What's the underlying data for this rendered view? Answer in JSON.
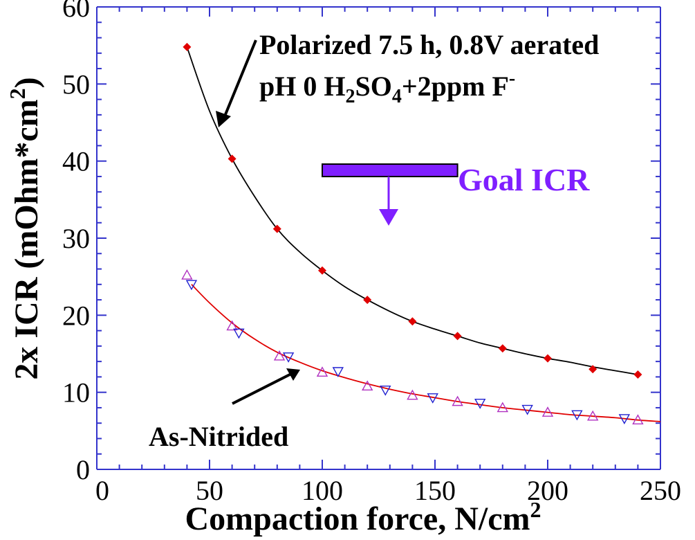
{
  "chart_data": {
    "type": "scatter",
    "xlabel": "Compaction force, N/cm",
    "xlabel_sup": "2",
    "ylabel": "2x ICR (mOhm*cm",
    "ylabel_sup": "2",
    "ylabel_end": ")",
    "xlim": [
      0,
      250
    ],
    "ylim": [
      0,
      60
    ],
    "xticks": [
      0,
      50,
      100,
      150,
      200,
      250
    ],
    "yticks": [
      0,
      10,
      20,
      30,
      40,
      50,
      60
    ],
    "grid": false,
    "colors": {
      "axis": "#3333cc",
      "polarized": "#e00000",
      "as_nitrided_up": "#b030c0",
      "as_nitrided_down": "#2020d0",
      "as_nitrided_fit": "#e00000",
      "goal": "#7f1fff"
    },
    "series": [
      {
        "marker": "diamond",
        "x": [
          40,
          60,
          80,
          100,
          120,
          140,
          160,
          180,
          200,
          220,
          240
        ],
        "y": [
          54.8,
          40.3,
          31.2,
          25.8,
          22.0,
          19.2,
          17.3,
          15.7,
          14.4,
          13.0,
          12.3
        ],
        "fit": [
          [
            40,
            54.8
          ],
          [
            50,
            46.5
          ],
          [
            60,
            40.3
          ],
          [
            70,
            35.4
          ],
          [
            80,
            31.2
          ],
          [
            90,
            28.2
          ],
          [
            100,
            25.8
          ],
          [
            110,
            23.7
          ],
          [
            120,
            22.0
          ],
          [
            130,
            20.5
          ],
          [
            140,
            19.2
          ],
          [
            150,
            18.2
          ],
          [
            160,
            17.3
          ],
          [
            170,
            16.4
          ],
          [
            180,
            15.7
          ],
          [
            190,
            15.0
          ],
          [
            200,
            14.4
          ],
          [
            210,
            13.9
          ],
          [
            220,
            13.3
          ],
          [
            230,
            12.8
          ],
          [
            240,
            12.3
          ]
        ]
      },
      {
        "marker": "triangle-up",
        "x": [
          40,
          60,
          81,
          100,
          120,
          140,
          160,
          180,
          200,
          220,
          240
        ],
        "y": [
          25.2,
          18.6,
          14.7,
          12.6,
          10.8,
          9.6,
          8.8,
          8.0,
          7.4,
          6.9,
          6.4
        ]
      },
      {
        "marker": "triangle-down",
        "x": [
          42,
          63,
          85,
          107,
          128,
          149,
          170,
          191,
          213,
          234
        ],
        "y": [
          24.0,
          17.7,
          14.6,
          12.7,
          10.3,
          9.3,
          8.6,
          7.8,
          7.1,
          6.6
        ],
        "fit": [
          [
            42,
            24.0
          ],
          [
            50,
            21.6
          ],
          [
            60,
            19.0
          ],
          [
            70,
            16.9
          ],
          [
            80,
            15.2
          ],
          [
            90,
            13.9
          ],
          [
            100,
            12.8
          ],
          [
            110,
            11.9
          ],
          [
            120,
            11.1
          ],
          [
            130,
            10.4
          ],
          [
            140,
            9.8
          ],
          [
            150,
            9.3
          ],
          [
            160,
            8.8
          ],
          [
            170,
            8.4
          ],
          [
            180,
            8.0
          ],
          [
            190,
            7.7
          ],
          [
            200,
            7.4
          ],
          [
            210,
            7.1
          ],
          [
            220,
            6.9
          ],
          [
            230,
            6.7
          ],
          [
            240,
            6.4
          ],
          [
            250,
            6.2
          ]
        ]
      }
    ],
    "annotations": {
      "polarized_line1": "Polarized 7.5 h, 0.8V aerated",
      "polarized_line2_a": "pH 0 H",
      "polarized_line2_sub1": "2",
      "polarized_line2_b": "SO",
      "polarized_line2_sub2": "4",
      "polarized_line2_c": "+2ppm F",
      "polarized_line2_sup": "-",
      "as_nitrided": "As-Nitrided",
      "goal": "Goal ICR"
    },
    "goal_bar": {
      "x_start": 100,
      "x_end": 160,
      "y": 38.8
    }
  }
}
